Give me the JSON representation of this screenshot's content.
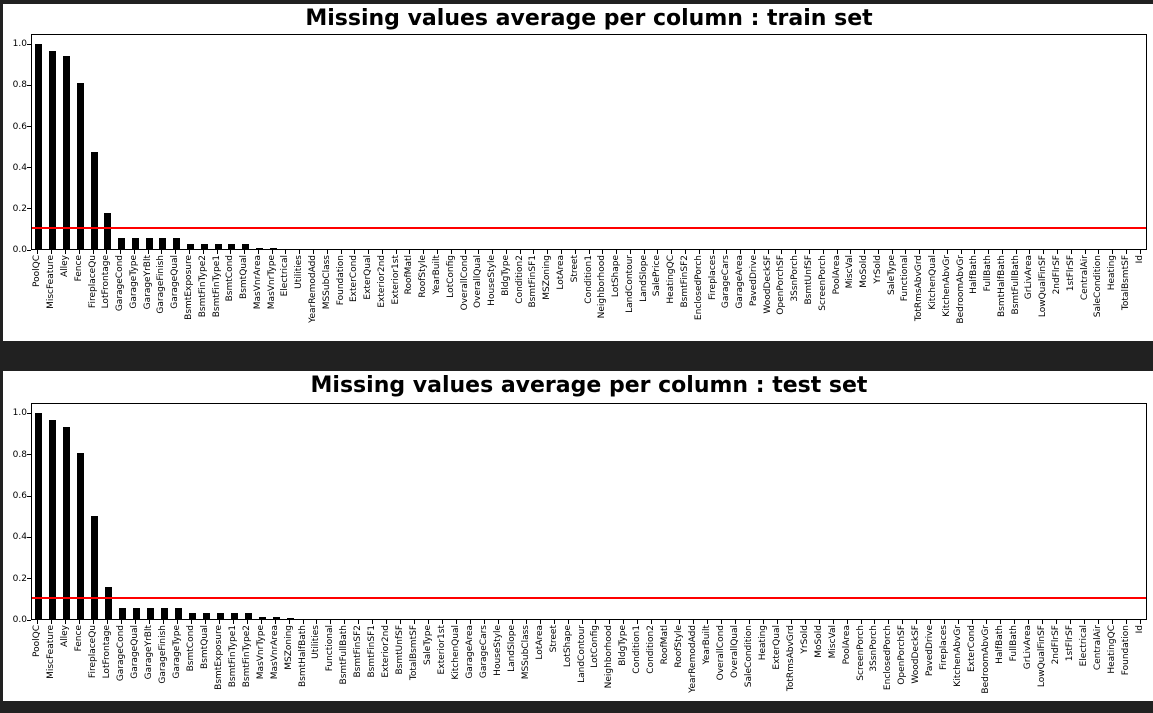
{
  "page": {
    "background_color": "#212121",
    "figure_color": "#ffffff"
  },
  "y_axis": {
    "ticks": [
      "0.0",
      "0.2",
      "0.4",
      "0.6",
      "0.8",
      "1.0"
    ]
  },
  "chart_data": [
    {
      "type": "bar",
      "title": "Missing values average per column : train set",
      "xlabel": "",
      "ylabel": "",
      "ylim": [
        0,
        1.05
      ],
      "grid": false,
      "legend": false,
      "bar_color": "#000000",
      "threshold_line": {
        "y": 0.1,
        "color": "#ff0000"
      },
      "categories": [
        "PoolQC",
        "MiscFeature",
        "Alley",
        "Fence",
        "FireplaceQu",
        "LotFrontage",
        "GarageCond",
        "GarageType",
        "GarageYrBlt",
        "GarageFinish",
        "GarageQual",
        "BsmtExposure",
        "BsmtFinType2",
        "BsmtFinType1",
        "BsmtCond",
        "BsmtQual",
        "MasVnrArea",
        "MasVnrType",
        "Electrical",
        "Utilities",
        "YearRemodAdd",
        "MSSubClass",
        "Foundation",
        "ExterCond",
        "ExterQual",
        "Exterior2nd",
        "Exterior1st",
        "RoofMatl",
        "RoofStyle",
        "YearBuilt",
        "LotConfig",
        "OverallCond",
        "OverallQual",
        "HouseStyle",
        "BldgType",
        "Condition2",
        "BsmtFinSF1",
        "MSZoning",
        "LotArea",
        "Street",
        "Condition1",
        "Neighborhood",
        "LotShape",
        "LandContour",
        "LandSlope",
        "SalePrice",
        "HeatingQC",
        "BsmtFinSF2",
        "EnclosedPorch",
        "Fireplaces",
        "GarageCars",
        "GarageArea",
        "PavedDrive",
        "WoodDeckSF",
        "OpenPorchSF",
        "3SsnPorch",
        "BsmtUnfSF",
        "ScreenPorch",
        "PoolArea",
        "MiscVal",
        "MoSold",
        "YrSold",
        "SaleType",
        "Functional",
        "TotRmsAbvGrd",
        "KitchenQual",
        "KitchenAbvGr",
        "BedroomAbvGr",
        "HalfBath",
        "FullBath",
        "BsmtHalfBath",
        "BsmtFullBath",
        "GrLivArea",
        "LowQualFinSF",
        "2ndFlrSF",
        "1stFlrSF",
        "CentralAir",
        "SaleCondition",
        "Heating",
        "TotalBsmtSF",
        "Id"
      ],
      "values": [
        0.995,
        0.963,
        0.938,
        0.808,
        0.473,
        0.177,
        0.0555,
        0.0555,
        0.0555,
        0.0555,
        0.0555,
        0.026,
        0.026,
        0.0253,
        0.0253,
        0.0253,
        0.0055,
        0.0055,
        0.0007,
        0,
        0,
        0,
        0,
        0,
        0,
        0,
        0,
        0,
        0,
        0,
        0,
        0,
        0,
        0,
        0,
        0,
        0,
        0,
        0,
        0,
        0,
        0,
        0,
        0,
        0,
        0,
        0,
        0,
        0,
        0,
        0,
        0,
        0,
        0,
        0,
        0,
        0,
        0,
        0,
        0,
        0,
        0,
        0,
        0,
        0,
        0,
        0,
        0,
        0,
        0,
        0,
        0,
        0,
        0,
        0,
        0,
        0,
        0,
        0,
        0,
        0
      ]
    },
    {
      "type": "bar",
      "title": "Missing values average per column : test set",
      "xlabel": "",
      "ylabel": "",
      "ylim": [
        0,
        1.05
      ],
      "grid": false,
      "legend": false,
      "bar_color": "#000000",
      "threshold_line": {
        "y": 0.1,
        "color": "#ff0000"
      },
      "categories": [
        "PoolQC",
        "MiscFeature",
        "Alley",
        "Fence",
        "FireplaceQu",
        "LotFrontage",
        "GarageCond",
        "GarageQual",
        "GarageYrBlt",
        "GarageFinish",
        "GarageType",
        "BsmtCond",
        "BsmtQual",
        "BsmtExposure",
        "BsmtFinType1",
        "BsmtFinType2",
        "MasVnrType",
        "MasVnrArea",
        "MSZoning",
        "BsmtHalfBath",
        "Utilities",
        "Functional",
        "BsmtFullBath",
        "BsmtFinSF2",
        "BsmtFinSF1",
        "Exterior2nd",
        "BsmtUnfSF",
        "TotalBsmtSF",
        "SaleType",
        "Exterior1st",
        "KitchenQual",
        "GarageArea",
        "GarageCars",
        "HouseStyle",
        "LandSlope",
        "MSSubClass",
        "LotArea",
        "Street",
        "LotShape",
        "LandContour",
        "LotConfig",
        "Neighborhood",
        "BldgType",
        "Condition1",
        "Condition2",
        "RoofMatl",
        "RoofStyle",
        "YearRemodAdd",
        "YearBuilt",
        "OverallCond",
        "OverallQual",
        "SaleCondition",
        "Heating",
        "ExterQual",
        "TotRmsAbvGrd",
        "YrSold",
        "MoSold",
        "MiscVal",
        "PoolArea",
        "ScreenPorch",
        "3SsnPorch",
        "EnclosedPorch",
        "OpenPorchSF",
        "WoodDeckSF",
        "PavedDrive",
        "Fireplaces",
        "KitchenAbvGr",
        "ExterCond",
        "BedroomAbvGr",
        "HalfBath",
        "FullBath",
        "GrLivArea",
        "LowQualFinSF",
        "2ndFlrSF",
        "1stFlrSF",
        "Electrical",
        "CentralAir",
        "HeatingQC",
        "Foundation",
        "Id"
      ],
      "values": [
        0.998,
        0.965,
        0.927,
        0.801,
        0.5,
        0.156,
        0.0535,
        0.0535,
        0.0535,
        0.0535,
        0.0521,
        0.0308,
        0.0302,
        0.0302,
        0.0288,
        0.0288,
        0.011,
        0.0103,
        0.0027,
        0.0014,
        0.0014,
        0.0014,
        0.0014,
        0.0007,
        0.0007,
        0.0007,
        0.0007,
        0.0007,
        0.0007,
        0.0007,
        0.0007,
        0.0007,
        0.0007,
        0,
        0,
        0,
        0,
        0,
        0,
        0,
        0,
        0,
        0,
        0,
        0,
        0,
        0,
        0,
        0,
        0,
        0,
        0,
        0,
        0,
        0,
        0,
        0,
        0,
        0,
        0,
        0,
        0,
        0,
        0,
        0,
        0,
        0,
        0,
        0,
        0,
        0,
        0,
        0,
        0,
        0,
        0,
        0,
        0,
        0,
        0
      ]
    }
  ]
}
